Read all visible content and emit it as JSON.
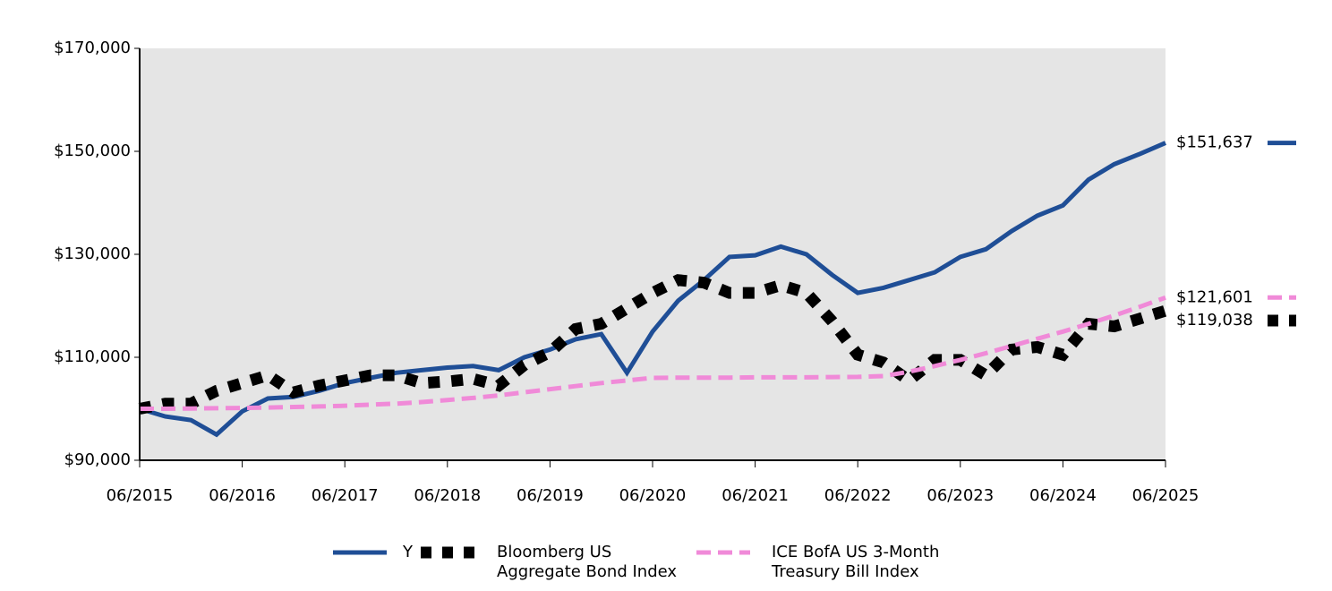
{
  "chart_data": {
    "type": "line",
    "x": [
      "06/2015",
      "09/2015",
      "12/2015",
      "03/2016",
      "06/2016",
      "09/2016",
      "12/2016",
      "03/2017",
      "06/2017",
      "09/2017",
      "12/2017",
      "03/2018",
      "06/2018",
      "09/2018",
      "12/2018",
      "03/2019",
      "06/2019",
      "09/2019",
      "12/2019",
      "03/2020",
      "06/2020",
      "09/2020",
      "12/2020",
      "03/2021",
      "06/2021",
      "09/2021",
      "12/2021",
      "03/2022",
      "06/2022",
      "09/2022",
      "12/2022",
      "03/2023",
      "06/2023",
      "09/2023",
      "12/2023",
      "03/2024",
      "06/2024",
      "09/2024",
      "12/2024",
      "03/2025",
      "06/2025"
    ],
    "xticks": [
      "06/2015",
      "06/2016",
      "06/2017",
      "06/2018",
      "06/2019",
      "06/2020",
      "06/2021",
      "06/2022",
      "06/2023",
      "06/2024",
      "06/2025"
    ],
    "ylim": [
      90000,
      170000
    ],
    "yticks": [
      {
        "value": 90000,
        "label": "$90,000"
      },
      {
        "value": 110000,
        "label": "$110,000"
      },
      {
        "value": 130000,
        "label": "$130,000"
      },
      {
        "value": 150000,
        "label": "$150,000"
      },
      {
        "value": 170000,
        "label": "$170,000"
      }
    ],
    "series": [
      {
        "name": "Y",
        "color": "#1f4e96",
        "style": "solid",
        "end_label": "$151,637",
        "values": [
          100000,
          98500,
          97800,
          95000,
          99500,
          102000,
          102300,
          103500,
          105000,
          106000,
          107000,
          107500,
          108000,
          108300,
          107500,
          110000,
          111500,
          113500,
          114500,
          107000,
          115000,
          121000,
          125000,
          129500,
          129800,
          131500,
          130000,
          126000,
          122500,
          123500,
          125000,
          126500,
          129500,
          131000,
          134500,
          137500,
          139500,
          144500,
          147500,
          149500,
          151637
        ]
      },
      {
        "name": "Bloomberg US Aggregate Bond Index",
        "color": "#000000",
        "style": "dotted",
        "end_label": "$119,038",
        "values": [
          100000,
          101000,
          101000,
          103500,
          105000,
          106500,
          103200,
          104500,
          105500,
          106500,
          106500,
          105000,
          105300,
          105800,
          104500,
          108500,
          111000,
          115500,
          116500,
          119500,
          122500,
          125000,
          124500,
          122500,
          122500,
          124000,
          122500,
          117000,
          110500,
          109000,
          105500,
          109500,
          109500,
          106500,
          111500,
          112000,
          110500,
          116500,
          116000,
          117500,
          119038
        ]
      },
      {
        "name": "ICE BofA US 3-Month Treasury Bill Index",
        "color": "#f08ad8",
        "style": "dashed",
        "end_label": "$121,601",
        "values": [
          100000,
          100000,
          100050,
          100100,
          100150,
          100250,
          100350,
          100450,
          100600,
          100800,
          101000,
          101300,
          101700,
          102100,
          102600,
          103200,
          103800,
          104400,
          105000,
          105500,
          106000,
          106050,
          106050,
          106050,
          106100,
          106100,
          106100,
          106150,
          106200,
          106350,
          107200,
          108300,
          109500,
          110800,
          112200,
          113600,
          115000,
          116500,
          118100,
          119800,
          121601
        ]
      }
    ]
  }
}
